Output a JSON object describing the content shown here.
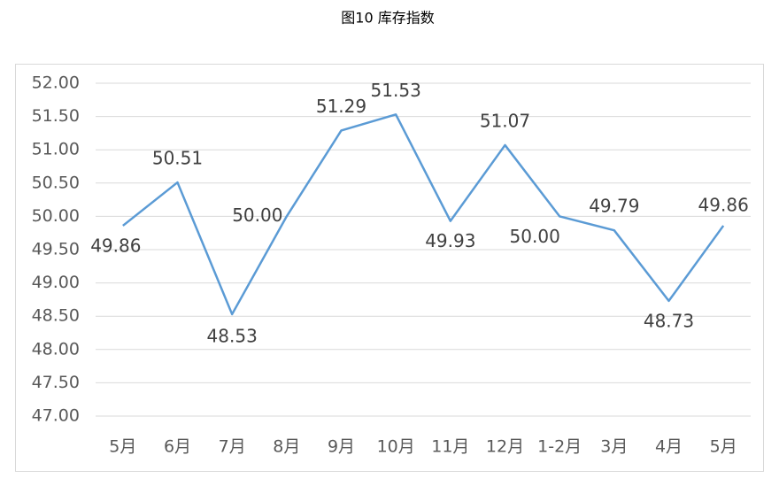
{
  "chart_data": {
    "type": "line",
    "title": "图10 库存指数",
    "categories": [
      "5月",
      "6月",
      "7月",
      "8月",
      "9月",
      "10月",
      "11月",
      "12月",
      "1-2月",
      "3月",
      "4月",
      "5月"
    ],
    "series": [
      {
        "name": "库存指数",
        "color": "#5b9bd5",
        "values": [
          49.86,
          50.51,
          48.53,
          50.0,
          51.29,
          51.53,
          49.93,
          51.07,
          50.0,
          49.79,
          48.73,
          49.86
        ],
        "value_labels": [
          "49.86",
          "50.51",
          "48.53",
          "50.00",
          "51.29",
          "51.53",
          "49.93",
          "51.07",
          "50.00",
          "49.79",
          "48.73",
          "49.86"
        ]
      }
    ],
    "ylim": [
      47,
      52
    ],
    "yticks": [
      {
        "value": 47,
        "label": "47.00"
      },
      {
        "value": 47.5,
        "label": "47.50"
      },
      {
        "value": 48,
        "label": "48.00"
      },
      {
        "value": 48.5,
        "label": "48.50"
      },
      {
        "value": 49,
        "label": "49.00"
      },
      {
        "value": 49.5,
        "label": "49.50"
      },
      {
        "value": 50,
        "label": "50.00"
      },
      {
        "value": 50.5,
        "label": "50.50"
      },
      {
        "value": 51,
        "label": "51.00"
      },
      {
        "value": 51.5,
        "label": "51.50"
      },
      {
        "value": 52,
        "label": "52.00"
      }
    ],
    "grid": true
  }
}
